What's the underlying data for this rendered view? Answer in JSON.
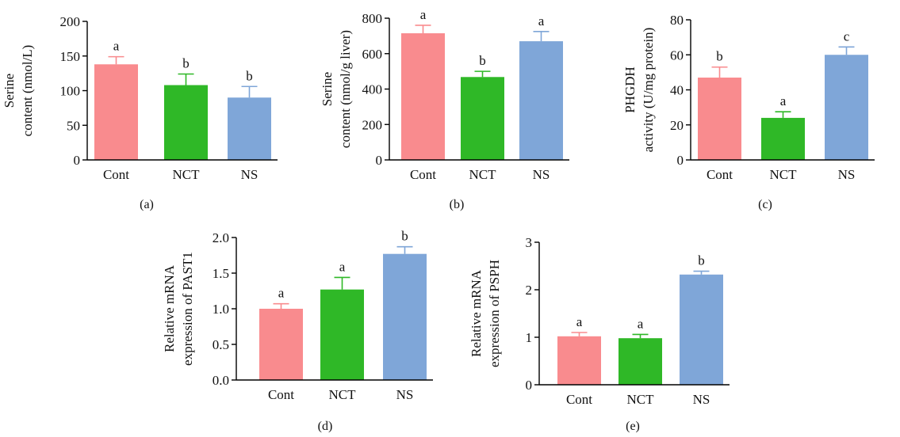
{
  "chart_data": [
    {
      "type": "bar",
      "panel": "(a)",
      "categories": [
        "Cont",
        "NCT",
        "NS"
      ],
      "values": [
        138,
        108,
        90
      ],
      "errors": [
        11,
        16,
        16
      ],
      "significance": [
        "a",
        "b",
        "b"
      ],
      "colors": [
        "#f98b8e",
        "#2fb827",
        "#7fa6d8"
      ],
      "ylabel_lines": [
        "Serine",
        "content (nmol/L)"
      ],
      "ylim": [
        0,
        200
      ],
      "yticks": [
        0,
        50,
        100,
        150,
        200
      ],
      "ytick_labels": [
        "0",
        "50",
        "100",
        "150",
        "200"
      ]
    },
    {
      "type": "bar",
      "panel": "(b)",
      "categories": [
        "Cont",
        "NCT",
        "NS"
      ],
      "values": [
        715,
        468,
        670
      ],
      "errors": [
        45,
        32,
        55
      ],
      "significance": [
        "a",
        "b",
        "a"
      ],
      "colors": [
        "#f98b8e",
        "#2fb827",
        "#7fa6d8"
      ],
      "ylabel_lines": [
        "Serine",
        "content (nmol/g liver)"
      ],
      "ylim": [
        0,
        800
      ],
      "yticks": [
        0,
        200,
        400,
        600,
        800
      ],
      "ytick_labels": [
        "0",
        "200",
        "400",
        "600",
        "800"
      ]
    },
    {
      "type": "bar",
      "panel": "(c)",
      "categories": [
        "Cont",
        "NCT",
        "NS"
      ],
      "values": [
        47,
        24,
        60
      ],
      "errors": [
        6,
        3.5,
        4.5
      ],
      "significance": [
        "b",
        "a",
        "c"
      ],
      "colors": [
        "#f98b8e",
        "#2fb827",
        "#7fa6d8"
      ],
      "ylabel_lines": [
        "PHGDH",
        "activity (U/mg protein)"
      ],
      "ylim": [
        0,
        80
      ],
      "yticks": [
        0,
        20,
        40,
        60,
        80
      ],
      "ytick_labels": [
        "0",
        "20",
        "40",
        "60",
        "80"
      ]
    },
    {
      "type": "bar",
      "panel": "(d)",
      "categories": [
        "Cont",
        "NCT",
        "NS"
      ],
      "values": [
        1.0,
        1.27,
        1.77
      ],
      "errors": [
        0.07,
        0.17,
        0.1
      ],
      "significance": [
        "a",
        "a",
        "b"
      ],
      "colors": [
        "#f98b8e",
        "#2fb827",
        "#7fa6d8"
      ],
      "ylabel_lines": [
        "Relative mRNA",
        "expression of PAST1"
      ],
      "ylim": [
        0,
        2.0
      ],
      "yticks": [
        0,
        0.5,
        1.0,
        1.5,
        2.0
      ],
      "ytick_labels": [
        "0.0",
        "0.5",
        "1.0",
        "1.5",
        "2.0"
      ]
    },
    {
      "type": "bar",
      "panel": "(e)",
      "categories": [
        "Cont",
        "NCT",
        "NS"
      ],
      "values": [
        1.02,
        0.98,
        2.32
      ],
      "errors": [
        0.08,
        0.08,
        0.07
      ],
      "significance": [
        "a",
        "a",
        "b"
      ],
      "colors": [
        "#f98b8e",
        "#2fb827",
        "#7fa6d8"
      ],
      "ylabel_lines": [
        "Relative mRNA",
        "expression of PSPH"
      ],
      "ylim": [
        0,
        3
      ],
      "yticks": [
        0,
        1,
        2,
        3
      ],
      "ytick_labels": [
        "0",
        "1",
        "2",
        "3"
      ]
    }
  ]
}
